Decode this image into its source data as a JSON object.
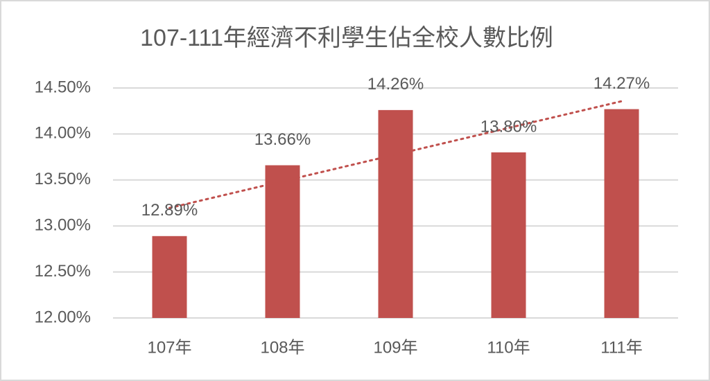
{
  "chart_data": {
    "type": "bar",
    "title": "107-111年經濟不利學生佔全校人數比例",
    "categories": [
      "107年",
      "108年",
      "109年",
      "110年",
      "111年"
    ],
    "values": [
      12.89,
      13.66,
      14.26,
      13.8,
      14.27
    ],
    "value_labels": [
      "12.89%",
      "13.66%",
      "14.26%",
      "13.80%",
      "14.27%"
    ],
    "color": "#c0504d",
    "ylim": [
      12,
      14.5
    ],
    "yticks": [
      {
        "value": 12,
        "label": "12.00%"
      },
      {
        "value": 12.5,
        "label": "12.50%"
      },
      {
        "value": 13,
        "label": "13.00%"
      },
      {
        "value": 13.5,
        "label": "13.50%"
      },
      {
        "value": 14,
        "label": "14.00%"
      },
      {
        "value": 14.5,
        "label": "14.50%"
      }
    ],
    "grid": true,
    "trendline": "linear"
  }
}
